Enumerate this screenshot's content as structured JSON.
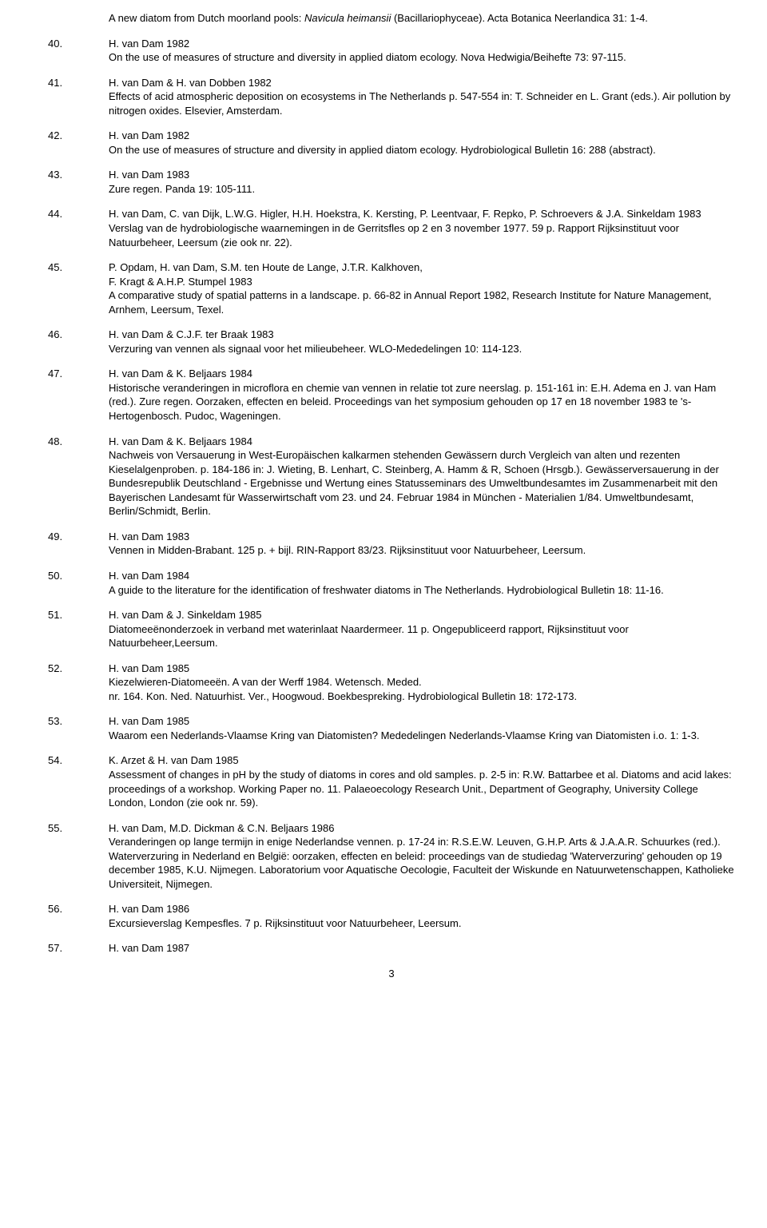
{
  "orphan": "A new diatom from Dutch moorland pools: <i>Navicula heimansii</i> (Bacillariophyceae). Acta Botanica Neerlandica 31: 1-4.",
  "entries": [
    {
      "num": "40.",
      "authors": "H. van Dam 1982",
      "text": "On the use of measures of structure and diversity in applied diatom ecology. Nova Hedwigia/Beihefte 73: 97-115."
    },
    {
      "num": "41.",
      "authors": "H. van Dam & H. van Dobben 1982",
      "text": "Effects of acid atmospheric deposition on ecosystems in The Netherlands p. 547-554 in: T. Schneider en L. Grant (eds.). Air pollution by nitrogen oxides. Elsevier, Amsterdam."
    },
    {
      "num": "42.",
      "authors": "H. van Dam 1982",
      "text": "On the use of measures of structure and diversity in applied diatom ecology. Hydrobiological Bulletin 16: 288 (abstract)."
    },
    {
      "num": "43.",
      "authors": "H. van Dam 1983",
      "text": "Zure regen. Panda 19: 105-111."
    },
    {
      "num": "44.",
      "authors": "H. van Dam, C. van Dijk, L.W.G. Higler, H.H. Hoekstra, K. Kersting, P. Leentvaar, F. Repko, P. Schroevers & J.A. Sinkeldam 1983",
      "text": "Verslag van de hydrobiologische waarnemingen in de Gerritsfles op 2 en 3 november 1977. 59 p. Rapport Rijksinstituut voor Natuurbeheer, Leersum (zie ook nr. 22)."
    },
    {
      "num": "45.",
      "authors": "P. Opdam, H. van Dam, S.M. ten Houte de Lange, J.T.R. Kalkhoven,",
      "authors2": "F. Kragt & A.H.P. Stumpel 1983",
      "text": "A comparative study of spatial patterns in a landscape. p. 66-82 in Annual Report 1982, Research Institute for Nature Management, Arnhem, Leersum, Texel."
    },
    {
      "num": "46.",
      "authors": "H. van Dam & C.J.F. ter Braak 1983",
      "text": "Verzuring van vennen als signaal voor het milieubeheer. WLO-Mededelingen 10: 114-123."
    },
    {
      "num": "47.",
      "authors": "H. van Dam & K. Beljaars 1984",
      "text": "Historische veranderingen in microflora en chemie van vennen in relatie tot zure neerslag. p. 151-161 in: E.H. Adema en J. van Ham (red.). Zure regen. Oorzaken, effecten en beleid. Proceedings van het symposium gehouden op 17 en 18 november 1983 te 's-Hertogenbosch. Pudoc, Wageningen."
    },
    {
      "num": "48.",
      "authors": "H. van Dam & K. Beljaars 1984",
      "text": "Nachweis von Versauerung in West-Europäischen kalkarmen stehenden Gewässern durch Vergleich van alten und rezenten Kieselalgenproben. p. 184-186 in: J. Wieting, B. Lenhart, C. Steinberg, A. Hamm & R, Schoen (Hrsgb.). Gewässerversauerung in der Bundesrepublik Deutschland - Ergebnisse und Wertung eines Statusseminars des Umweltbundesamtes im Zusammenarbeit mit den Bayerischen Landesamt für Wasserwirtschaft vom 23. und 24. Februar 1984 in München - Materialien 1/84. Umweltbundesamt, Berlin/Schmidt, Berlin."
    },
    {
      "num": "49.",
      "authors": "H. van Dam 1983",
      "text": "Vennen in Midden-Brabant. 125 p. + bijl. RIN-Rapport 83/23. Rijksinstituut voor Natuurbeheer, Leersum."
    },
    {
      "num": "50.",
      "authors": "H. van Dam 1984",
      "text": "A guide to the literature for the identification of freshwater diatoms in The Netherlands. Hydrobiological Bulletin 18: 11-16."
    },
    {
      "num": "51.",
      "authors": "H. van Dam & J. Sinkeldam 1985",
      "text": "Diatomeeënonderzoek in verband met waterinlaat Naardermeer. 11 p. Ongepubliceerd rapport, Rijksinstituut voor Natuurbeheer,Leersum."
    },
    {
      "num": "52.",
      "authors": "H. van Dam 1985",
      "text": "Kiezelwieren-Diatomeeën. A van der Werff 1984. Wetensch. Meded.",
      "text2": "nr. 164. Kon. Ned. Natuurhist. Ver., Hoogwoud. Boekbespreking. Hydrobiological Bulletin 18: 172-173."
    },
    {
      "num": "53.",
      "authors": "H. van Dam 1985",
      "text": "Waarom een Nederlands-Vlaamse Kring van Diatomisten? Mededelingen Nederlands-Vlaamse Kring van Diatomisten i.o. 1: 1-3."
    },
    {
      "num": "54.",
      "authors": "K. Arzet & H. van Dam 1985",
      "text": "Assessment of changes in pH by the study of diatoms in cores and old samples. p. 2-5 in: R.W. Battarbee et al. Diatoms and acid lakes: proceedings of a workshop. Working Paper no. 11. Palaeoecology Research Unit., Department of Geography, University College London, London (zie ook nr. 59)."
    },
    {
      "num": "55.",
      "authors": "H. van Dam, M.D. Dickman & C.N. Beljaars 1986",
      "text": "Veranderingen op lange termijn in enige Nederlandse vennen. p. 17-24 in: R.S.E.W. Leuven, G.H.P. Arts & J.A.A.R. Schuurkes (red.). Waterverzuring in Nederland en België: oorzaken, effecten en beleid: proceedings van de studiedag 'Waterverzuring' gehouden op 19 december 1985, K.U. Nijmegen. Laboratorium voor Aquatische Oecologie, Faculteit der Wiskunde en Natuurwetenschappen, Katholieke Universiteit, Nijmegen."
    },
    {
      "num": "56.",
      "authors": "H. van Dam 1986",
      "text": "Excursieverslag Kempesfles. 7 p. Rijksinstituut voor Natuurbeheer, Leersum."
    },
    {
      "num": "57.",
      "authors": "H. van Dam 1987",
      "text": ""
    }
  ],
  "pagenum": "3"
}
